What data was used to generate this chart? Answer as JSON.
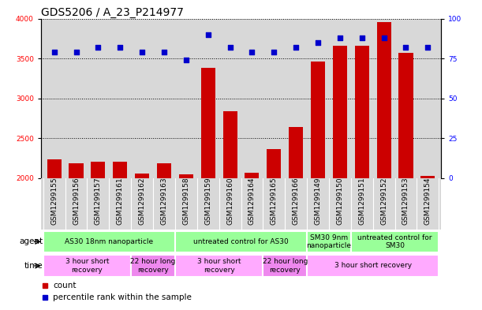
{
  "title": "GDS5206 / A_23_P214977",
  "samples": [
    "GSM1299155",
    "GSM1299156",
    "GSM1299157",
    "GSM1299161",
    "GSM1299162",
    "GSM1299163",
    "GSM1299158",
    "GSM1299159",
    "GSM1299160",
    "GSM1299164",
    "GSM1299165",
    "GSM1299166",
    "GSM1299149",
    "GSM1299150",
    "GSM1299151",
    "GSM1299152",
    "GSM1299153",
    "GSM1299154"
  ],
  "counts": [
    2240,
    2185,
    2210,
    2210,
    2060,
    2185,
    2045,
    3380,
    2840,
    2070,
    2370,
    2640,
    3460,
    3660,
    3660,
    3960,
    3570,
    2030
  ],
  "percentiles": [
    79,
    79,
    82,
    82,
    79,
    79,
    74,
    90,
    82,
    79,
    79,
    82,
    85,
    88,
    88,
    88,
    82,
    82
  ],
  "ylim_left": [
    2000,
    4000
  ],
  "ylim_right": [
    0,
    100
  ],
  "yticks_left": [
    2000,
    2500,
    3000,
    3500,
    4000
  ],
  "yticks_right": [
    0,
    25,
    50,
    75,
    100
  ],
  "bar_color": "#cc0000",
  "dot_color": "#0000cc",
  "agent_groups": [
    {
      "label": "AS30 18nm nanoparticle",
      "start": 0,
      "end": 6,
      "color": "#99ff99"
    },
    {
      "label": "untreated control for AS30",
      "start": 6,
      "end": 12,
      "color": "#99ff99"
    },
    {
      "label": "SM30 9nm\nnanoparticle",
      "start": 12,
      "end": 14,
      "color": "#99ff99"
    },
    {
      "label": "untreated control for\nSM30",
      "start": 14,
      "end": 18,
      "color": "#99ff99"
    }
  ],
  "time_groups": [
    {
      "label": "3 hour short\nrecovery",
      "start": 0,
      "end": 4,
      "color": "#ffaaff"
    },
    {
      "label": "22 hour long\nrecovery",
      "start": 4,
      "end": 6,
      "color": "#ee88ee"
    },
    {
      "label": "3 hour short\nrecovery",
      "start": 6,
      "end": 10,
      "color": "#ffaaff"
    },
    {
      "label": "22 hour long\nrecovery",
      "start": 10,
      "end": 12,
      "color": "#ee88ee"
    },
    {
      "label": "3 hour short recovery",
      "start": 12,
      "end": 18,
      "color": "#ffaaff"
    }
  ],
  "bg_color": "#d8d8d8",
  "title_fontsize": 10,
  "tick_fontsize": 6.5,
  "label_fontsize": 7.5,
  "row_fontsize": 6.5
}
